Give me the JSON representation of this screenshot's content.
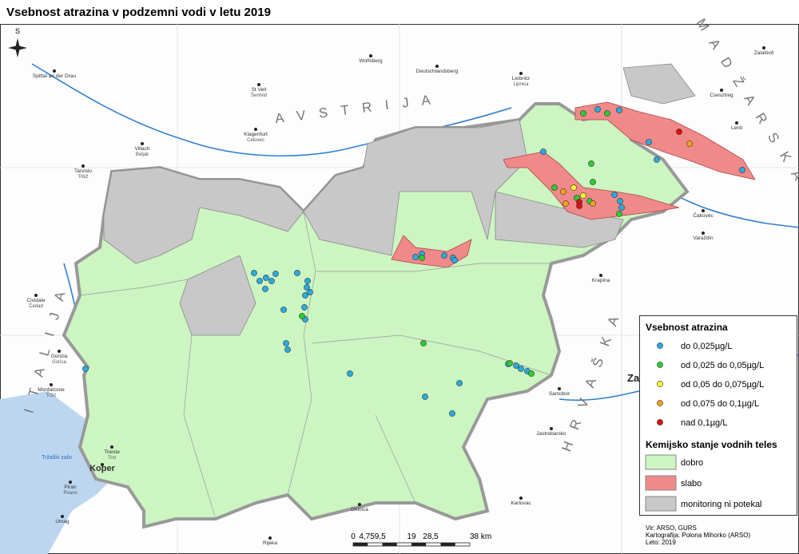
{
  "title": "Vsebnost atrazina v podzemni vodi v letu 2019",
  "map": {
    "north": "S",
    "country_labels": [
      "A V S T R I J A",
      "M A D Ž A R S K A",
      "H R V A Š K A",
      "I T A L I J A"
    ],
    "places": [
      {
        "name": "Spittal an der Drau"
      },
      {
        "name": "Wolfsberg"
      },
      {
        "name": "Deutschlandsberg"
      },
      {
        "name": "Leibnitz",
        "sub": "Lipnica"
      },
      {
        "name": "Zalalövő"
      },
      {
        "name": "St Veit",
        "sub": "Šentvid"
      },
      {
        "name": "Klagenfurt",
        "sub": "Celovec"
      },
      {
        "name": "Villach",
        "sub": "Beljak"
      },
      {
        "name": "Tarvisio",
        "sub": "Trbiž"
      },
      {
        "name": "Csesztreg"
      },
      {
        "name": "Lenti"
      },
      {
        "name": "Čakovec"
      },
      {
        "name": "Varaždin"
      },
      {
        "name": "Krapina"
      },
      {
        "name": "Cividale",
        "sub": "Čedad"
      },
      {
        "name": "Gorizia",
        "sub": "Gorica"
      },
      {
        "name": "Monfalcone",
        "sub": "Tržič"
      },
      {
        "name": "Trieste",
        "sub": "Trst"
      },
      {
        "name": "Koper"
      },
      {
        "name": "Piran",
        "sub": "Pirano"
      },
      {
        "name": "Umag"
      },
      {
        "name": "Samobor"
      },
      {
        "name": "Za"
      },
      {
        "name": "Jastrebarsko"
      },
      {
        "name": "Karlovac"
      },
      {
        "name": "Delnica"
      },
      {
        "name": "Rijeka"
      },
      {
        "name": "Tržaški zaliv"
      }
    ]
  },
  "legend": {
    "points_title": "Vsebnost atrazina",
    "points": [
      {
        "label": "do 0,025µg/L",
        "color": "#29abe2"
      },
      {
        "label": "od 0,025 do 0,05µg/L",
        "color": "#2ecc2e"
      },
      {
        "label": "od 0,05 do 0,075µg/L",
        "color": "#f5f52a"
      },
      {
        "label": "od 0,075 do 0,1µg/L",
        "color": "#f5a01e"
      },
      {
        "label": "nad 0,1µg/L",
        "color": "#e01010"
      }
    ],
    "status_title": "Kemijsko stanje vodnih teles",
    "status": [
      {
        "label": "dobro",
        "color": "#ccf5c2"
      },
      {
        "label": "slabo",
        "color": "#f08a8a"
      },
      {
        "label": "monitoring ni potekal",
        "color": "#c8c8c8"
      }
    ]
  },
  "scale_bar": [
    "0",
    "4,759,5",
    "19",
    "28,5",
    "38 km"
  ],
  "credits": [
    "Vir: ARSO, GURS",
    "Kartografija: Polona Mihorko (ARSO)",
    "Leto: 2019"
  ]
}
